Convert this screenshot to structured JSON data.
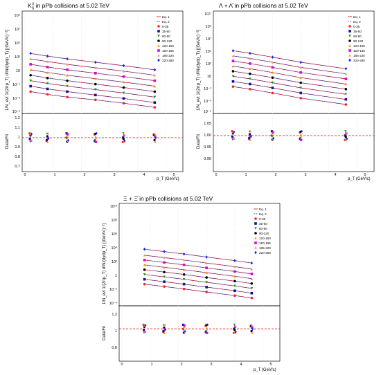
{
  "legend_entries": [
    "Eq. 1",
    "Eq. 2",
    "0-35",
    "35-60",
    "60-90",
    "90-120",
    "120-150",
    "150-185",
    "185-220",
    "220-280"
  ],
  "legend_colors": [
    "#e00000",
    "#2030c0",
    "#ff2020",
    "#1010a0",
    "#10a010",
    "#000000",
    "#ff9000",
    "#e000e0",
    "#e0a070",
    "#2020ff"
  ],
  "panels": [
    {
      "title_main": "K",
      "title_sub": "S",
      "title_sup": "0",
      "title_rest": " in pPb collisions at 5.02 TeV",
      "ylabel": "1/N_evt 1/(2πp_T) d²N/(dydp_T) [(GeV/c)⁻²]",
      "ratio_ylabel": "Data/Fit",
      "xlabel": "p_T (GeV/c)",
      "y_ticks": [
        "10⁹",
        "10⁷",
        "10⁵",
        "10³",
        "10",
        "10⁻¹",
        "10⁻³",
        "10⁻⁵"
      ],
      "ratio_ticks": [
        "1.2",
        "1.1",
        "1",
        "0.9",
        "0.8",
        "0.7"
      ],
      "x_ticks": [
        "0",
        "1",
        "2",
        "3",
        "4",
        "5"
      ]
    },
    {
      "title_main": "Λ + Λ̄",
      "title_sub": "",
      "title_sup": "",
      "title_rest": " in pPb collisions at 5.02 TeV",
      "ylabel": "1/N_evt 1/(2πp_T) d²N/(dydp_T) [(GeV/c)⁻²]",
      "ratio_ylabel": "Data/Fit",
      "xlabel": "p_T (GeV/c)",
      "y_ticks": [
        "10¹¹",
        "10⁹",
        "10⁷",
        "10⁵",
        "10³",
        "10",
        "10⁻¹",
        "10⁻³",
        "10⁻⁵"
      ],
      "ratio_ticks": [
        "1.05",
        "1.00",
        "0.95",
        "0.90"
      ],
      "x_ticks": [
        "0",
        "1",
        "2",
        "3",
        "4",
        "5"
      ]
    },
    {
      "title_main": "Ξ + Ξ̄",
      "title_sub": "",
      "title_sup": "",
      "title_rest": " in pPb collisions at 5.02 TeV",
      "ylabel": "1/N_evt 1/(2πp_T) d²N/(dydp_T) [(GeV/c)⁻²]",
      "ratio_ylabel": "Data/Fit",
      "xlabel": "p_T (GeV/c)",
      "y_ticks": [
        "10¹⁰",
        "10⁸",
        "10⁶",
        "10⁴",
        "10²",
        "1",
        "10⁻²",
        "10⁻⁴"
      ],
      "ratio_ticks": [
        "1.2",
        "1",
        "0.8"
      ],
      "x_ticks": [
        "0",
        "1",
        "2",
        "3",
        "4",
        "5"
      ]
    }
  ],
  "chart_data": [
    {
      "type": "scatter",
      "title": "K0S in pPb collisions at 5.02 TeV",
      "xlabel": "pT (GeV/c)",
      "ylabel": "1/Nevt 1/(2πpT) d2N/(dydpT) [(GeV/c)^-2]",
      "xlim": [
        0,
        5.5
      ],
      "ylim_log10": [
        -5,
        10
      ],
      "ratio_ylabel": "Data/Fit",
      "ratio_ylim": [
        0.65,
        1.25
      ],
      "legend_position": "top-right",
      "series": [
        {
          "name": "0-35",
          "x": [
            0.2,
            0.8,
            1.5,
            2.5,
            3.5,
            4.6
          ],
          "y_log10": [
            -1.8,
            -2.2,
            -2.6,
            -3.0,
            -3.5,
            -4.1
          ]
        },
        {
          "name": "35-60",
          "x": [
            0.2,
            0.8,
            1.5,
            2.5,
            3.5,
            4.6
          ],
          "y_log10": [
            -1.0,
            -1.4,
            -1.8,
            -2.3,
            -2.8,
            -3.4
          ]
        },
        {
          "name": "60-90",
          "x": [
            0.2,
            0.8,
            1.5,
            2.5,
            3.5,
            4.6
          ],
          "y_log10": [
            -0.2,
            -0.6,
            -1.0,
            -1.5,
            -2.0,
            -2.6
          ]
        },
        {
          "name": "90-120",
          "x": [
            0.2,
            0.8,
            1.5,
            2.5,
            3.5,
            4.6
          ],
          "y_log10": [
            0.6,
            0.2,
            -0.2,
            -0.7,
            -1.2,
            -1.8
          ]
        },
        {
          "name": "120-150",
          "x": [
            0.2,
            0.8,
            1.5,
            2.5,
            3.5,
            4.6
          ],
          "y_log10": [
            1.4,
            1.0,
            0.6,
            0.1,
            -0.4,
            -1.0
          ]
        },
        {
          "name": "150-185",
          "x": [
            0.2,
            0.8,
            1.5,
            2.5,
            3.5,
            4.6
          ],
          "y_log10": [
            2.2,
            1.8,
            1.4,
            0.9,
            0.4,
            -0.2
          ]
        },
        {
          "name": "185-220",
          "x": [
            0.2,
            0.8,
            1.5,
            2.5,
            3.5,
            4.6
          ],
          "y_log10": [
            3.0,
            2.6,
            2.2,
            1.7,
            1.2,
            0.6
          ]
        },
        {
          "name": "220-280",
          "x": [
            0.2,
            0.8,
            1.5,
            2.5,
            3.5,
            4.6
          ],
          "y_log10": [
            3.8,
            3.4,
            3.0,
            2.5,
            2.0,
            1.4
          ]
        }
      ]
    },
    {
      "type": "scatter",
      "title": "Λ + Λ̄ in pPb collisions at 5.02 TeV",
      "xlabel": "pT (GeV/c)",
      "ylabel": "1/Nevt 1/(2πpT) d2N/(dydpT) [(GeV/c)^-2]",
      "xlim": [
        0,
        5.5
      ],
      "ylim_log10": [
        -5,
        11
      ],
      "ratio_ylabel": "Data/Fit",
      "ratio_ylim": [
        0.87,
        1.08
      ],
      "legend_position": "top-right",
      "series": [
        {
          "name": "0-35",
          "x": [
            0.6,
            1.2,
            2.0,
            3.0,
            4.6
          ],
          "y_log10": [
            -0.8,
            -1.2,
            -1.8,
            -2.6,
            -3.6
          ]
        },
        {
          "name": "35-60",
          "x": [
            0.6,
            1.2,
            2.0,
            3.0,
            4.6
          ],
          "y_log10": [
            0.0,
            -0.4,
            -1.0,
            -1.8,
            -2.8
          ]
        },
        {
          "name": "60-90",
          "x": [
            0.6,
            1.2,
            2.0,
            3.0,
            4.6
          ],
          "y_log10": [
            0.8,
            0.4,
            -0.2,
            -1.0,
            -2.0
          ]
        },
        {
          "name": "90-120",
          "x": [
            0.6,
            1.2,
            2.0,
            3.0,
            4.6
          ],
          "y_log10": [
            1.6,
            1.2,
            0.6,
            -0.2,
            -1.2
          ]
        },
        {
          "name": "120-150",
          "x": [
            0.6,
            1.2,
            2.0,
            3.0,
            4.6
          ],
          "y_log10": [
            2.4,
            2.0,
            1.4,
            0.6,
            -0.4
          ]
        },
        {
          "name": "150-185",
          "x": [
            0.6,
            1.2,
            2.0,
            3.0,
            4.6
          ],
          "y_log10": [
            3.2,
            2.8,
            2.2,
            1.4,
            0.4
          ]
        },
        {
          "name": "185-220",
          "x": [
            0.6,
            1.2,
            2.0,
            3.0,
            4.6
          ],
          "y_log10": [
            4.0,
            3.6,
            3.0,
            2.2,
            1.2
          ]
        },
        {
          "name": "220-280",
          "x": [
            0.6,
            1.2,
            2.0,
            3.0,
            4.6
          ],
          "y_log10": [
            4.8,
            4.4,
            3.8,
            3.0,
            2.0
          ]
        }
      ]
    },
    {
      "type": "scatter",
      "title": "Ξ + Ξ̄ in pPb collisions at 5.02 TeV",
      "xlabel": "pT (GeV/c)",
      "ylabel": "1/Nevt 1/(2πpT) d2N/(dydpT) [(GeV/c)^-2]",
      "xlim": [
        0,
        5.5
      ],
      "ylim_log10": [
        -6,
        11
      ],
      "ratio_ylabel": "Data/Fit",
      "ratio_ylim": [
        0.65,
        1.25
      ],
      "legend_position": "top-right",
      "series": [
        {
          "name": "0-35",
          "x": [
            0.8,
            1.5,
            2.2,
            3.0,
            4.0,
            4.6
          ],
          "y_log10": [
            -2.4,
            -2.8,
            -3.2,
            -3.7,
            -4.3,
            -4.7
          ]
        },
        {
          "name": "35-60",
          "x": [
            0.8,
            1.5,
            2.2,
            3.0,
            4.0,
            4.6
          ],
          "y_log10": [
            -1.6,
            -2.0,
            -2.4,
            -2.9,
            -3.5,
            -3.9
          ]
        },
        {
          "name": "60-90",
          "x": [
            0.8,
            1.5,
            2.2,
            3.0,
            4.0,
            4.6
          ],
          "y_log10": [
            -0.8,
            -1.2,
            -1.6,
            -2.1,
            -2.7,
            -3.1
          ]
        },
        {
          "name": "90-120",
          "x": [
            0.8,
            1.5,
            2.2,
            3.0,
            4.0,
            4.6
          ],
          "y_log10": [
            0.0,
            -0.4,
            -0.8,
            -1.3,
            -1.9,
            -2.3
          ]
        },
        {
          "name": "120-150",
          "x": [
            0.8,
            1.5,
            2.2,
            3.0,
            4.0,
            4.6
          ],
          "y_log10": [
            0.8,
            0.4,
            0.0,
            -0.5,
            -1.1,
            -1.5
          ]
        },
        {
          "name": "150-185",
          "x": [
            0.8,
            1.5,
            2.2,
            3.0,
            4.0,
            4.6
          ],
          "y_log10": [
            1.6,
            1.2,
            0.8,
            0.3,
            -0.3,
            -0.7
          ]
        },
        {
          "name": "185-220",
          "x": [
            0.8,
            1.5,
            2.2,
            3.0,
            4.0,
            4.6
          ],
          "y_log10": [
            2.4,
            2.0,
            1.6,
            1.1,
            0.5,
            0.1
          ]
        },
        {
          "name": "220-280",
          "x": [
            0.8,
            1.5,
            2.2,
            3.0,
            4.0,
            4.6
          ],
          "y_log10": [
            3.4,
            3.0,
            2.6,
            2.1,
            1.5,
            1.1
          ]
        }
      ]
    }
  ]
}
